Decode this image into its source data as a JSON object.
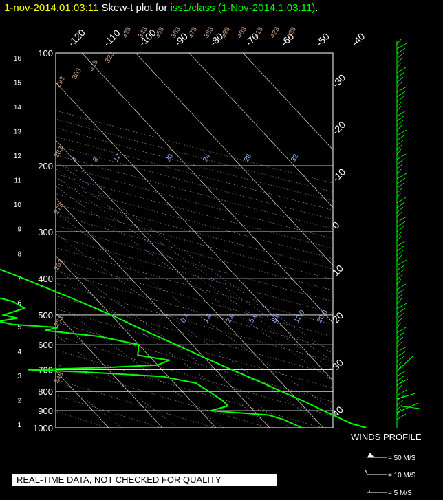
{
  "header": {
    "timestamp": "1-nov-2014,01:03:11",
    "plot_label": "Skew-t plot for",
    "station": "iss1/class",
    "station_time": "(1-Nov-2014,1:03:11)",
    "period": "."
  },
  "disclaimer": "REAL-TIME DATA, NOT CHECKED FOR QUALITY",
  "colors": {
    "background": "#000000",
    "temperature": "#00ff00",
    "dewpoint": "#00ff00",
    "wind_barbs": "#00ff00",
    "grid": "#ffffff",
    "dry_adiabats": "#c8a080",
    "mixing_ratio": "#8fb4ff",
    "title_time": "#ffff00"
  },
  "chart_data": {
    "type": "line",
    "title": "Skew-t plot for iss1/class (1-Nov-2014,1:03:11)",
    "x_scale": "temperature (deg C), skewed",
    "y_scale": "pressure (mb), logarithmic",
    "pressure_ticks": [
      "100",
      "200",
      "300",
      "400",
      "500",
      "600",
      "700",
      "800",
      "900",
      "1000"
    ],
    "pressure_values": [
      100,
      200,
      300,
      400,
      500,
      600,
      700,
      800,
      900,
      1000
    ],
    "height_ticks": [
      "1",
      "2",
      "3",
      "4",
      "5",
      "6",
      "7",
      "8",
      "9",
      "10",
      "11",
      "12",
      "13",
      "14",
      "15",
      "16"
    ],
    "top_temp_ticks": [
      "-120",
      "-110",
      "-100",
      "-90",
      "-80",
      "-70",
      "-60",
      "-50",
      "-40"
    ],
    "right_temp_ticks": [
      "-30",
      "-20",
      "-10",
      "0",
      "10",
      "20",
      "30",
      "40"
    ],
    "right_temp_values": [
      -30,
      -20,
      -10,
      0,
      10,
      20,
      30,
      40
    ],
    "theta_labels": [
      "293",
      "303",
      "313",
      "323",
      "333",
      "343",
      "353",
      "363",
      "373",
      "383",
      "393",
      "403",
      "413",
      "423",
      "433"
    ],
    "theta_labels_left": [
      "283",
      "273",
      "263",
      "253",
      "243"
    ],
    "mixing_ratio_labels": [
      "4",
      "8",
      "12",
      "20",
      "24",
      "28",
      "32"
    ],
    "mixing_ratio_labels_low": [
      "0.4",
      "1.0",
      "2.0",
      "5.0",
      "8.0",
      "12.0",
      "20.0"
    ],
    "series": [
      {
        "name": "temperature",
        "points": [
          [
            1000,
            18
          ],
          [
            975,
            16
          ],
          [
            950,
            15
          ],
          [
            925,
            14
          ],
          [
            900,
            13
          ],
          [
            850,
            11
          ],
          [
            800,
            8.5
          ],
          [
            750,
            6
          ],
          [
            700,
            3
          ],
          [
            650,
            0
          ],
          [
            600,
            -3
          ],
          [
            550,
            -6.5
          ],
          [
            500,
            -10
          ],
          [
            450,
            -14.5
          ],
          [
            400,
            -20
          ],
          [
            380,
            -22.5
          ],
          [
            360,
            -25.5
          ],
          [
            340,
            -28
          ],
          [
            320,
            -31.5
          ],
          [
            300,
            -35
          ],
          [
            280,
            -38.5
          ],
          [
            260,
            -42
          ],
          [
            240,
            -46
          ],
          [
            220,
            -50
          ],
          [
            200,
            -54
          ],
          [
            190,
            -57
          ],
          [
            180,
            -58
          ],
          [
            170,
            -58
          ],
          [
            160,
            -57.5
          ],
          [
            150,
            -57
          ],
          [
            140,
            -58
          ],
          [
            130,
            -60
          ],
          [
            125,
            -61
          ],
          [
            120,
            -61
          ],
          [
            115,
            -60
          ],
          [
            110,
            -60
          ],
          [
            105,
            -61
          ],
          [
            100,
            -62
          ]
        ]
      },
      {
        "name": "dewpoint",
        "points": [
          [
            1000,
            6
          ],
          [
            975,
            5
          ],
          [
            950,
            4
          ],
          [
            925,
            2
          ],
          [
            900,
            -8
          ],
          [
            875,
            -4
          ],
          [
            850,
            -4
          ],
          [
            800,
            -5
          ],
          [
            760,
            -6
          ],
          [
            730,
            -11
          ],
          [
            710,
            -25
          ],
          [
            700,
            -35
          ],
          [
            690,
            -20
          ],
          [
            680,
            -10
          ],
          [
            660,
            -7
          ],
          [
            640,
            -12
          ],
          [
            620,
            -11
          ],
          [
            600,
            -10
          ],
          [
            570,
            -16
          ],
          [
            550,
            -25
          ],
          [
            540,
            -22
          ],
          [
            530,
            -30
          ],
          [
            520,
            -32
          ],
          [
            510,
            -28
          ],
          [
            500,
            -30
          ],
          [
            480,
            -25
          ],
          [
            460,
            -26
          ],
          [
            440,
            -30
          ],
          [
            420,
            -32
          ],
          [
            410,
            -35
          ],
          [
            400,
            -37
          ],
          [
            390,
            -37
          ],
          [
            380,
            -36
          ],
          [
            370,
            -39
          ],
          [
            360,
            -32
          ],
          [
            340,
            -38
          ],
          [
            320,
            -41
          ],
          [
            300,
            -45
          ],
          [
            280,
            -48
          ],
          [
            260,
            -51
          ],
          [
            240,
            -54
          ],
          [
            220,
            -58
          ],
          [
            200,
            -63
          ],
          [
            180,
            -65
          ],
          [
            160,
            -65
          ],
          [
            150,
            -67
          ],
          [
            140,
            -69
          ],
          [
            130,
            -72
          ],
          [
            120,
            -74
          ],
          [
            110,
            -74
          ],
          [
            100,
            -75
          ]
        ]
      }
    ],
    "legend": {
      "title": "WINDS PROFILE",
      "items": [
        "= 50 M/S",
        "= 10 M/S",
        "= 5 M/S"
      ]
    }
  }
}
